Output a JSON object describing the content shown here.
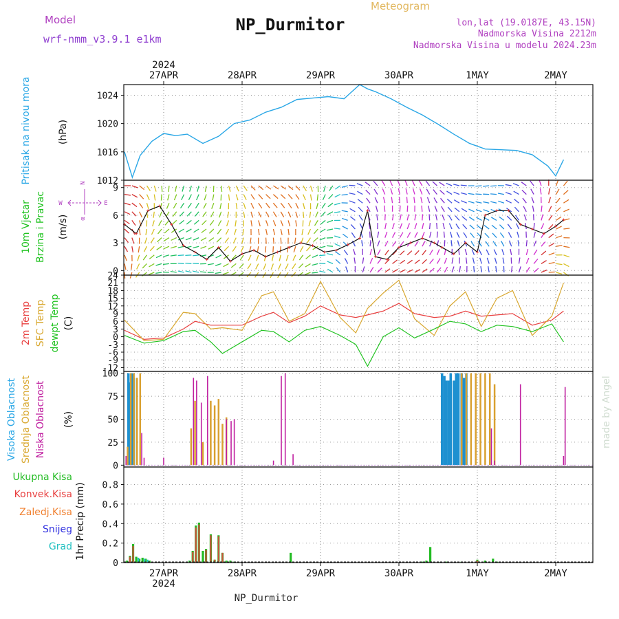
{
  "header": {
    "model_label": "Model",
    "model_name": "wrf-nmm_v3.9.1  e1km",
    "title": "NP_Durmitor",
    "subtitle": "Meteogram",
    "coords": "lon,lat (19.0187E, 43.15N)",
    "elevation": "Nadmorska Visina 2212m",
    "model_elevation": "Nadmorska Visina u modelu 2024.23m",
    "footer": "NP_Durmitor",
    "signature": "made by Angel"
  },
  "time_axis": {
    "year": "2024",
    "days": [
      "27APR",
      "28APR",
      "29APR",
      "30APR",
      "1MAY",
      "2MAY"
    ]
  },
  "compass": {
    "n": "N",
    "w": "W",
    "e": "E",
    "alpha": "α"
  },
  "colors": {
    "pressure": "#2aa7e6",
    "temp2m": "#e84040",
    "sfc": "#d9a830",
    "dewpt": "#22c322",
    "high_cloud": "#1e90d0",
    "mid_cloud": "#d9a030",
    "low_cloud": "#c020a0",
    "total_precip": "#22bb22",
    "conv_precip": "#e84040",
    "frozen": "#f08030",
    "snow": "#3030e0",
    "hail": "#20c0c0"
  },
  "chart_data": [
    {
      "type": "line",
      "name": "pressure",
      "ylabel_main": "Pritisak na nivou mora",
      "ylabel_unit": "(hPa)",
      "yticks": [
        "1012",
        "1016",
        "1020",
        "1024"
      ],
      "ylim": [
        1012,
        1025.5
      ],
      "x_days": [
        0,
        0.1,
        0.2,
        0.35,
        0.5,
        0.65,
        0.8,
        1.0,
        1.2,
        1.4,
        1.6,
        1.8,
        2.0,
        2.2,
        2.4,
        2.6,
        2.8,
        3.0,
        3.1,
        3.2,
        3.4,
        3.6,
        3.8,
        4.0,
        4.2,
        4.4,
        4.6,
        4.8,
        5.0,
        5.2,
        5.4,
        5.5,
        5.6
      ],
      "values": [
        1016,
        1012.4,
        1015.5,
        1017.5,
        1018.6,
        1018.3,
        1018.5,
        1017.2,
        1018.2,
        1020.0,
        1020.5,
        1021.6,
        1022.3,
        1023.4,
        1023.6,
        1023.8,
        1023.5,
        1025.5,
        1024.9,
        1024.5,
        1023.5,
        1022.3,
        1021.2,
        1019.9,
        1018.5,
        1017.2,
        1016.4,
        1016.3,
        1016.2,
        1015.6,
        1014.0,
        1012.6,
        1014.9
      ]
    },
    {
      "type": "barbs_line",
      "name": "wind",
      "ylabel_main": "10m Vjetar",
      "ylabel_sub": "Brzina i Pravac",
      "ylabel_unit": "(m/s)",
      "yticks": [
        "0",
        "3",
        "6",
        "9"
      ],
      "ylim": [
        -0.5,
        9.8
      ],
      "x_days": [
        0,
        0.15,
        0.3,
        0.45,
        0.6,
        0.75,
        0.9,
        1.05,
        1.2,
        1.35,
        1.5,
        1.65,
        1.8,
        1.95,
        2.1,
        2.25,
        2.4,
        2.55,
        2.7,
        2.85,
        3.0,
        3.1,
        3.2,
        3.35,
        3.5,
        3.65,
        3.8,
        3.95,
        4.05,
        4.2,
        4.35,
        4.5,
        4.6,
        4.75,
        4.9,
        5.05,
        5.2,
        5.35,
        5.5,
        5.6
      ],
      "values": [
        5.0,
        4.0,
        6.5,
        7.0,
        5.0,
        2.7,
        2.0,
        1.2,
        2.5,
        1.0,
        1.8,
        2.2,
        1.5,
        2.0,
        2.5,
        3.0,
        2.7,
        2.0,
        2.2,
        2.8,
        3.5,
        6.5,
        1.5,
        1.2,
        2.5,
        3.0,
        3.5,
        3.0,
        2.5,
        1.8,
        3.0,
        2.0,
        6.0,
        6.5,
        6.5,
        5.0,
        4.5,
        4.0,
        4.8,
        5.5
      ]
    },
    {
      "type": "line",
      "name": "temperature",
      "ylabel_1": "2m Temp",
      "ylabel_2": "SFC Temp",
      "ylabel_3": "dewpt Temp",
      "ylabel_unit": "(C)",
      "yticks": [
        "-12",
        "-9",
        "-6",
        "-3",
        "0",
        "3",
        "6",
        "9",
        "12",
        "15",
        "18",
        "21",
        "24"
      ],
      "ylim": [
        -13.5,
        24
      ],
      "x_days": [
        0,
        0.25,
        0.5,
        0.75,
        0.9,
        1.1,
        1.25,
        1.5,
        1.75,
        1.9,
        2.1,
        2.3,
        2.5,
        2.75,
        2.95,
        3.1,
        3.3,
        3.5,
        3.7,
        3.95,
        4.15,
        4.35,
        4.55,
        4.75,
        4.95,
        5.2,
        5.45,
        5.6
      ],
      "series": [
        {
          "name": "2m Temp",
          "values": [
            2.5,
            -1.0,
            -0.5,
            3.0,
            6.0,
            4.5,
            4.5,
            4.5,
            8.0,
            9.5,
            5.5,
            8.0,
            12.0,
            8.5,
            7.5,
            8.5,
            10.0,
            13.0,
            9.0,
            7.5,
            8.0,
            10.0,
            8.0,
            8.5,
            9.0,
            4.5,
            6.5,
            10.0
          ]
        },
        {
          "name": "SFC Temp",
          "values": [
            6.5,
            -1.5,
            -1.0,
            9.5,
            9.0,
            3.0,
            3.5,
            2.5,
            16.0,
            17.5,
            6.0,
            9.0,
            21.5,
            7.5,
            1.5,
            11.0,
            17.0,
            22.0,
            7.0,
            0.5,
            12.0,
            17.5,
            4.0,
            15.0,
            18.0,
            0.5,
            8.0,
            21.0
          ]
        },
        {
          "name": "dewpt Temp",
          "values": [
            0.5,
            -2.5,
            -1.5,
            2.0,
            2.5,
            -2.0,
            -6.5,
            -2.0,
            2.5,
            2.0,
            -2.0,
            2.5,
            4.0,
            0.5,
            -3.0,
            -11.5,
            0.0,
            3.5,
            -0.5,
            3.0,
            6.0,
            5.0,
            2.0,
            4.5,
            4.0,
            2.0,
            5.0,
            -2.0
          ]
        }
      ]
    },
    {
      "type": "bar",
      "name": "cloud",
      "ylabel_1": "Visoka Oblacnost",
      "ylabel_2": "Srednja Oblacnost",
      "ylabel_3": "Niska Oblacnost",
      "ylabel_unit": "(%)",
      "yticks": [
        "0",
        "25",
        "50",
        "75",
        "100"
      ],
      "ylim": [
        -2,
        102
      ],
      "series": [
        {
          "name": "Visoka Oblacnost",
          "x_days": [
            0.05,
            0.07,
            0.1,
            0.12,
            4.05,
            4.08,
            4.1,
            4.13,
            4.16,
            4.2,
            4.23,
            4.26,
            4.3,
            4.33,
            4.36
          ],
          "values": [
            100,
            90,
            100,
            95,
            100,
            97,
            92,
            92,
            100,
            92,
            100,
            100,
            100,
            95,
            100
          ]
        },
        {
          "name": "Srednja Oblacnost",
          "x_days": [
            0.04,
            0.08,
            0.12,
            0.16,
            0.2,
            0.85,
            0.9,
            1.0,
            1.1,
            1.15,
            1.2,
            1.25,
            1.3,
            4.3,
            4.36,
            4.42,
            4.48,
            4.54,
            4.6,
            4.66,
            4.72
          ],
          "values": [
            20,
            100,
            100,
            95,
            100,
            40,
            70,
            25,
            70,
            65,
            72,
            45,
            52,
            100,
            100,
            100,
            100,
            100,
            100,
            100,
            88
          ]
        },
        {
          "name": "Niska Oblacnost",
          "x_days": [
            0.02,
            0.22,
            0.25,
            0.5,
            0.88,
            0.92,
            0.98,
            1.06,
            1.3,
            1.36,
            1.4,
            1.9,
            2.0,
            2.05,
            2.15,
            4.68,
            4.72,
            5.05,
            5.6,
            5.62
          ],
          "values": [
            10,
            35,
            8,
            8,
            95,
            92,
            68,
            97,
            50,
            48,
            50,
            5,
            97,
            100,
            12,
            40,
            5,
            88,
            10,
            85
          ]
        }
      ]
    },
    {
      "type": "bar",
      "name": "precipitation",
      "ylabel_main": "1hr Precip",
      "ylabel_unit": "(mm)",
      "legend_1": "Ukupna Kisa",
      "legend_2": "Konvek.Kisa",
      "legend_3": "Zaledj.Kisa",
      "legend_4": "Snijeg",
      "legend_5": "Grad",
      "yticks": [
        "0",
        "0.2",
        "0.4",
        "0.6",
        "0.8"
      ],
      "ylim": [
        0,
        0.98
      ],
      "series": [
        {
          "name": "Ukupna Kisa",
          "x_days": [
            0.03,
            0.07,
            0.11,
            0.15,
            0.19,
            0.23,
            0.27,
            0.32,
            0.83,
            0.87,
            0.91,
            0.95,
            1.0,
            1.04,
            1.1,
            1.15,
            1.2,
            1.25,
            1.3,
            1.35,
            1.4,
            1.45,
            2.12,
            3.8,
            3.85,
            3.9,
            3.95,
            4.0,
            4.1,
            4.3,
            4.5,
            4.6,
            4.7,
            4.75
          ],
          "values": [
            0.02,
            0.07,
            0.19,
            0.06,
            0.04,
            0.05,
            0.04,
            0.02,
            0.02,
            0.12,
            0.38,
            0.41,
            0.12,
            0.14,
            0.29,
            0.03,
            0.28,
            0.1,
            0.02,
            0.02,
            0.01,
            0.01,
            0.1,
            0.01,
            0.02,
            0.16,
            0.01,
            0.01,
            0.01,
            0.01,
            0.03,
            0.02,
            0.04,
            0.01
          ]
        },
        {
          "name": "Konvek.Kisa",
          "x_days": [
            0.07,
            0.11,
            0.87,
            0.91,
            0.95,
            1.04,
            1.1,
            1.15,
            1.2,
            1.25,
            4.5
          ],
          "values": [
            0.06,
            0.17,
            0.11,
            0.36,
            0.39,
            0.13,
            0.28,
            0.03,
            0.27,
            0.1,
            0.02
          ]
        },
        {
          "name": "Grad",
          "x_days": [
            0.15,
            0.23,
            0.27
          ],
          "values": [
            0.05,
            0.04,
            0.03
          ]
        }
      ]
    }
  ]
}
